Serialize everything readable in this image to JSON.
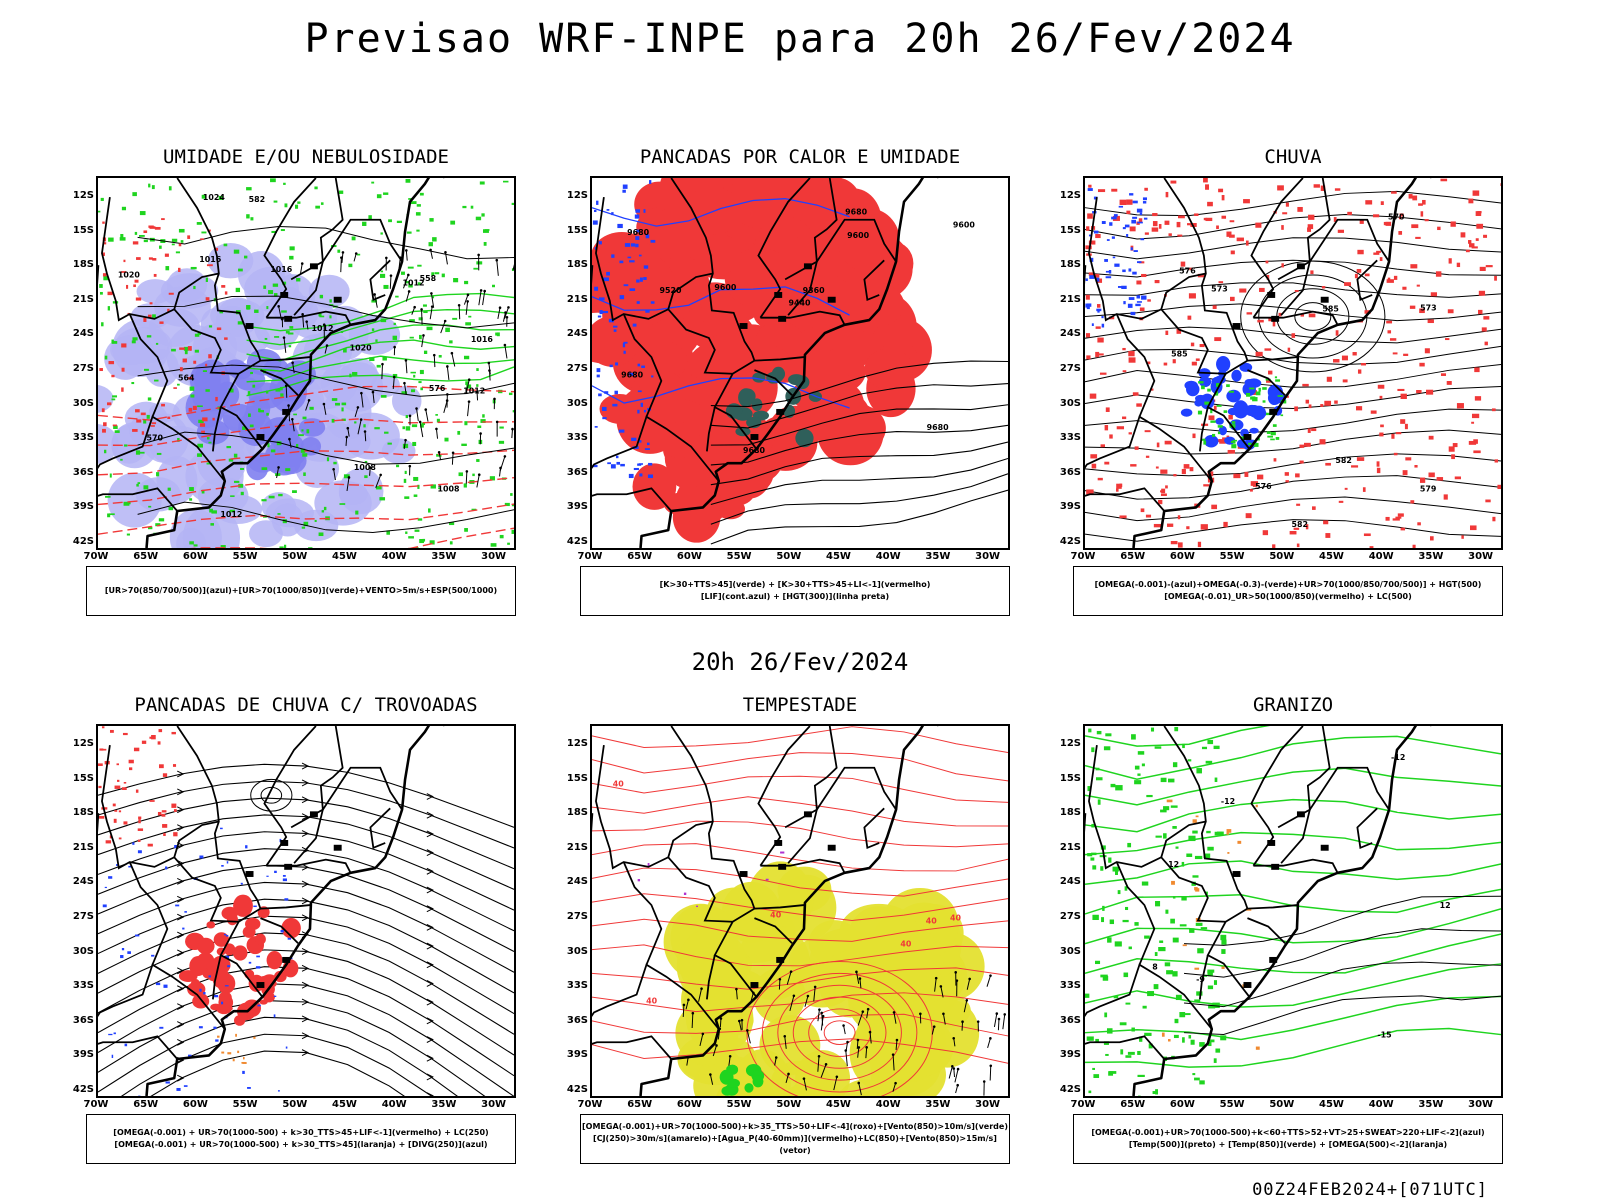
{
  "title": "Previsao WRF-INPE  para 20h 26/Fev/2024",
  "subtitle": "20h 26/Fev/2024",
  "footer": "00Z24FEB2024+[071UTC]",
  "lat_labels": [
    "12S",
    "15S",
    "18S",
    "21S",
    "24S",
    "27S",
    "30S",
    "33S",
    "36S",
    "39S",
    "42S"
  ],
  "lon_labels": [
    "70W",
    "65W",
    "60W",
    "55W",
    "50W",
    "45W",
    "40W",
    "35W",
    "30W"
  ],
  "panels": [
    {
      "title": "UMIDADE E/OU NEBULOSIDADE",
      "legend": [
        "[UR>70(850/700/500)](azul)+[UR>70(1000/850)](verde)+VENTO>5m/s+ESP(500/1000)"
      ],
      "contour_labels": [
        "1012",
        "1008",
        "1012",
        "1016",
        "1016",
        "1012",
        "1012",
        "1008",
        "1016",
        "1020",
        "1020",
        "1024",
        "570",
        "576",
        "582",
        "564",
        "558"
      ]
    },
    {
      "title": "PANCADAS POR CALOR E UMIDADE",
      "legend": [
        "[K>30+TTS>45](verde) + [K>30+TTS>45+LI<-1](vermelho)",
        "[LIF](cont.azul) + [HGT(300)](linha preta)"
      ],
      "contour_labels": [
        "9600",
        "9680",
        "9680",
        "9600",
        "9680",
        "9600",
        "9520",
        "9440",
        "9360",
        "9680",
        "9680"
      ]
    },
    {
      "title": "CHUVA",
      "legend": [
        "[OMEGA(-0.001)-(azul)+OMEGA(-0.3)-(verde)+UR>70(1000/850/700/500)] + HGT(500)",
        "[OMEGA(-0.01)_UR>50(1000/850)(vermelho) + LC(500)"
      ],
      "contour_labels": [
        "582",
        "585",
        "573",
        "576",
        "579",
        "576",
        "573",
        "570",
        "582",
        "585"
      ]
    },
    {
      "title": "PANCADAS DE CHUVA C/ TROVOADAS",
      "legend": [
        "[OMEGA(-0.001) + UR>70(1000-500) + k>30_TTS>45+LIF<-1](vermelho) + LC(250)",
        "[OMEGA(-0.001) + UR>70(1000-500) + k>30_TTS>45](laranja) + [DIVG(250)](azul)"
      ],
      "contour_labels": []
    },
    {
      "title": "TEMPESTADE",
      "legend": [
        "[OMEGA(-0.001)+UR>70(1000-500)+k>35_TTS>50+LIF<-4](roxo)+[Vento(850)>10m/s](verde)",
        "[CJ(250)>30m/s](amarelo)+[Agua_P(40-60mm)](vermelho)+LC(850)+[Vento(850)>15m/s](vetor)"
      ],
      "contour_labels": [
        "40",
        "40",
        "40",
        "40",
        "40",
        "40"
      ]
    },
    {
      "title": "GRANIZO",
      "legend": [
        "[OMEGA(-0.001)+UR>70(1000-500)+k<60+TTS>52+VT>25+SWEAT>220+LIF<-2](azul)",
        "[Temp(500)](preto) + [Temp(850)](verde) + [OMEGA(500)<-2](laranja)"
      ],
      "contour_labels": [
        "-12",
        "-9",
        "-12",
        "-15",
        "12",
        "8",
        "12"
      ]
    }
  ],
  "colors": {
    "red": "#f03838",
    "green": "#1fd41f",
    "blue": "#2040ff",
    "lightblue": "#b4b4f5",
    "midblue": "#8080f0",
    "teal": "#2f5f5a",
    "yellow": "#e4e030",
    "orange": "#f08a30",
    "purple": "#b030d0"
  }
}
